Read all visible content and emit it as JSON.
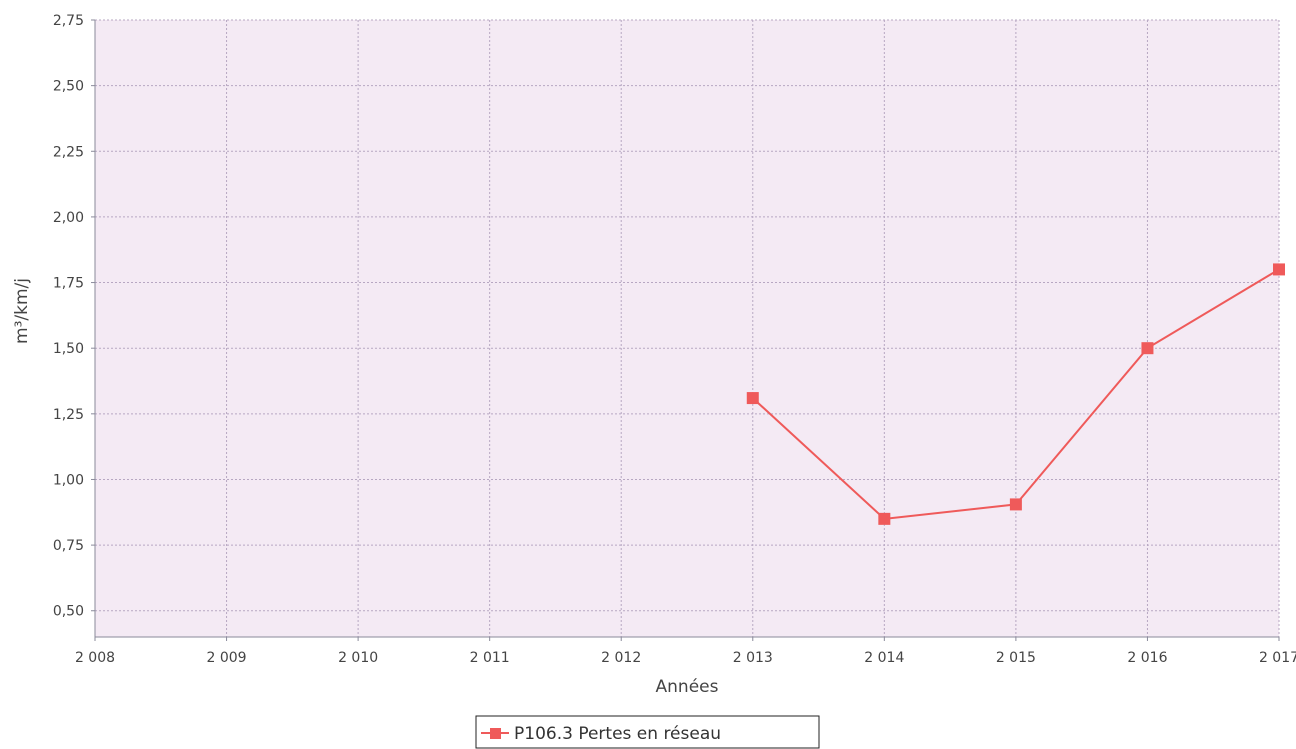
{
  "chart_data": {
    "type": "line",
    "title": "",
    "xlabel": "Années",
    "ylabel": "m³/km/j",
    "xlim": [
      2008,
      2017
    ],
    "ylim": [
      0.4,
      2.75
    ],
    "x_ticks": [
      2008,
      2009,
      2010,
      2011,
      2012,
      2013,
      2014,
      2015,
      2016,
      2017
    ],
    "x_tick_labels": [
      "2 008",
      "2 009",
      "2 010",
      "2 011",
      "2 012",
      "2 013",
      "2 014",
      "2 015",
      "2 016",
      "2 017"
    ],
    "y_ticks": [
      0.5,
      0.75,
      1.0,
      1.25,
      1.5,
      1.75,
      2.0,
      2.25,
      2.5,
      2.75
    ],
    "y_tick_labels": [
      "0,50",
      "0,75",
      "1,00",
      "1,25",
      "1,50",
      "1,75",
      "2,00",
      "2,25",
      "2,50",
      "2,75"
    ],
    "grid": true,
    "legend_position": "bottom-center",
    "plot_background": "#f4eaf4",
    "grid_color": "#b7a7c2",
    "axis_color": "#8a8a9a",
    "series": [
      {
        "name": "P106.3 Pertes en réseau",
        "color": "#ef5a5a",
        "marker": "square",
        "x": [
          2013,
          2014,
          2015,
          2016,
          2017
        ],
        "y": [
          1.31,
          0.85,
          0.905,
          1.5,
          1.8
        ]
      }
    ]
  }
}
